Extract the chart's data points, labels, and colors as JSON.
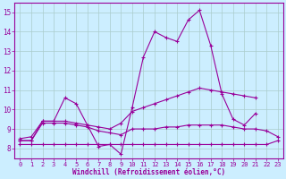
{
  "x": [
    0,
    1,
    2,
    3,
    4,
    5,
    6,
    7,
    8,
    9,
    10,
    11,
    12,
    13,
    14,
    15,
    16,
    17,
    18,
    19,
    20,
    21,
    22,
    23
  ],
  "line1": [
    8.5,
    8.6,
    9.4,
    9.4,
    10.6,
    10.3,
    9.2,
    8.1,
    8.2,
    7.7,
    10.1,
    12.7,
    14.0,
    13.7,
    13.5,
    14.6,
    15.1,
    13.3,
    10.8,
    9.5,
    9.2,
    9.8,
    null,
    null
  ],
  "line2": [
    8.4,
    8.4,
    9.4,
    9.4,
    9.4,
    9.3,
    9.2,
    9.1,
    9.0,
    9.3,
    9.9,
    10.1,
    10.3,
    10.5,
    10.7,
    10.9,
    11.1,
    11.0,
    10.9,
    10.8,
    10.7,
    10.6,
    null,
    null
  ],
  "line3": [
    8.4,
    8.4,
    9.3,
    9.3,
    9.3,
    9.2,
    9.1,
    8.9,
    8.8,
    8.7,
    9.0,
    9.0,
    9.0,
    9.1,
    9.1,
    9.2,
    9.2,
    9.2,
    9.2,
    9.1,
    9.0,
    9.0,
    8.9,
    8.6
  ],
  "line4": [
    8.2,
    8.2,
    8.2,
    8.2,
    8.2,
    8.2,
    8.2,
    8.2,
    8.2,
    8.2,
    8.2,
    8.2,
    8.2,
    8.2,
    8.2,
    8.2,
    8.2,
    8.2,
    8.2,
    8.2,
    8.2,
    8.2,
    8.2,
    8.4
  ],
  "color": "#990099",
  "bg_color": "#cceeff",
  "grid_color": "#aacccc",
  "xlabel": "Windchill (Refroidissement éolien,°C)",
  "xlim": [
    -0.5,
    23.5
  ],
  "ylim": [
    7.5,
    15.5
  ],
  "yticks": [
    8,
    9,
    10,
    11,
    12,
    13,
    14,
    15
  ],
  "xticks": [
    0,
    1,
    2,
    3,
    4,
    5,
    6,
    7,
    8,
    9,
    10,
    11,
    12,
    13,
    14,
    15,
    16,
    17,
    18,
    19,
    20,
    21,
    22,
    23
  ]
}
